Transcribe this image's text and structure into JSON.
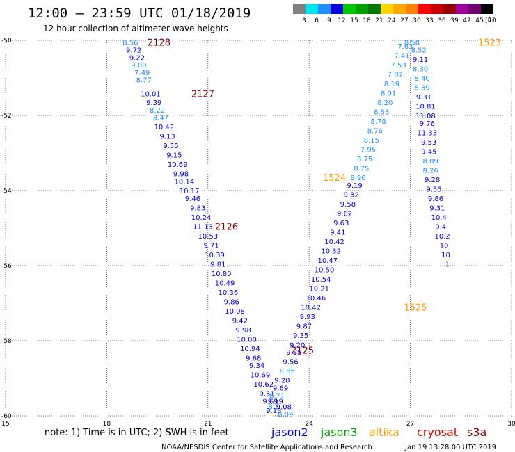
{
  "header": {
    "title": "12:00 – 23:59 UTC 01/18/2019",
    "subtitle": "12 hour collection of altimeter wave heights"
  },
  "color_scale": {
    "unit": "(ft)",
    "bins": [
      {
        "label": "3",
        "color": "#808080"
      },
      {
        "label": "6",
        "color": "#00e5ee"
      },
      {
        "label": "9",
        "color": "#1e90ff"
      },
      {
        "label": "12",
        "color": "#0000e0"
      },
      {
        "label": "15",
        "color": "#00c800"
      },
      {
        "label": "18",
        "color": "#00a000"
      },
      {
        "label": "21",
        "color": "#007800"
      },
      {
        "label": "24",
        "color": "#ffd700"
      },
      {
        "label": "27",
        "color": "#ffaa00"
      },
      {
        "label": "30",
        "color": "#ff7f00"
      },
      {
        "label": "33",
        "color": "#ff0000"
      },
      {
        "label": "36",
        "color": "#c80000"
      },
      {
        "label": "39",
        "color": "#960000"
      },
      {
        "label": "42",
        "color": "#a000a0"
      },
      {
        "label": "45",
        "color": "#700070"
      },
      {
        "label": "70",
        "color": "#000000"
      }
    ]
  },
  "note": "note:  1) Time is in UTC;  2) SWH is in feet",
  "legend": [
    {
      "name": "jason2",
      "color": "#0000cc"
    },
    {
      "name": "jason3",
      "color": "#00a000"
    },
    {
      "name": "altika",
      "color": "#ff9900"
    },
    {
      "name": "cryosat",
      "color": "#cc0000"
    },
    {
      "name": "s3a",
      "color": "#800000"
    }
  ],
  "footer": {
    "agency": "NOAA/NESDIS Center for Satellite Applications and Research",
    "timestamp": "Jan 19 13:28:00 UTC 2019"
  },
  "chart_data": {
    "type": "scatter",
    "xlim": [
      15,
      30
    ],
    "ylim": [
      -60,
      -50
    ],
    "x_ticks": [
      "15",
      "18",
      "21",
      "24",
      "27",
      "30"
    ],
    "y_ticks": [
      "-50",
      "-52",
      "-54",
      "-56",
      "-58",
      "-60"
    ],
    "grid": true,
    "pass_labels": [
      {
        "text": "2128",
        "x": 19.55,
        "y": -50.05,
        "color": "#800000"
      },
      {
        "text": "2127",
        "x": 20.85,
        "y": -51.42,
        "color": "#800000"
      },
      {
        "text": "2126",
        "x": 21.55,
        "y": -54.95,
        "color": "#800000"
      },
      {
        "text": "2125",
        "x": 23.8,
        "y": -58.25,
        "color": "#800000"
      },
      {
        "text": "1524",
        "x": 24.75,
        "y": -53.65,
        "color": "#ff9900"
      },
      {
        "text": "1525",
        "x": 27.15,
        "y": -57.1,
        "color": "#ff9900"
      },
      {
        "text": "1523",
        "x": 29.35,
        "y": -50.05,
        "color": "#ff9900"
      }
    ],
    "series": [
      {
        "name": "s3a",
        "points": [
          {
            "x": 18.7,
            "y": -50.05,
            "v": "8.56"
          },
          {
            "x": 18.8,
            "y": -50.25,
            "v": "9.72"
          },
          {
            "x": 18.9,
            "y": -50.45,
            "v": "9.22"
          },
          {
            "x": 18.95,
            "y": -50.65,
            "v": "9.00"
          },
          {
            "x": 19.05,
            "y": -50.85,
            "v": "7.49"
          },
          {
            "x": 19.1,
            "y": -51.05,
            "v": "8.77"
          },
          {
            "x": 19.3,
            "y": -51.42,
            "v": "10.01"
          },
          {
            "x": 19.4,
            "y": -51.65,
            "v": "9.39"
          },
          {
            "x": 19.5,
            "y": -51.85,
            "v": "8.22"
          },
          {
            "x": 19.6,
            "y": -52.05,
            "v": "8.47"
          },
          {
            "x": 19.7,
            "y": -52.3,
            "v": "10.42"
          },
          {
            "x": 19.8,
            "y": -52.55,
            "v": "9.13"
          },
          {
            "x": 19.9,
            "y": -52.8,
            "v": "9.55"
          },
          {
            "x": 20.0,
            "y": -53.05,
            "v": "9.15"
          },
          {
            "x": 20.1,
            "y": -53.3,
            "v": "10.69"
          },
          {
            "x": 20.2,
            "y": -53.55,
            "v": "9.98"
          },
          {
            "x": 20.3,
            "y": -53.75,
            "v": "10.14"
          },
          {
            "x": 20.45,
            "y": -54.0,
            "v": "10.17"
          },
          {
            "x": 20.55,
            "y": -54.2,
            "v": "9.46"
          },
          {
            "x": 20.7,
            "y": -54.45,
            "v": "9.83"
          },
          {
            "x": 20.8,
            "y": -54.7,
            "v": "10.24"
          },
          {
            "x": 20.85,
            "y": -54.95,
            "v": "11.13"
          },
          {
            "x": 21.0,
            "y": -55.2,
            "v": "10.53"
          },
          {
            "x": 21.1,
            "y": -55.45,
            "v": "9.71"
          },
          {
            "x": 21.2,
            "y": -55.7,
            "v": "10.39"
          },
          {
            "x": 21.3,
            "y": -55.95,
            "v": "9.81"
          },
          {
            "x": 21.4,
            "y": -56.2,
            "v": "10.80"
          },
          {
            "x": 21.5,
            "y": -56.45,
            "v": "10.49"
          },
          {
            "x": 21.6,
            "y": -56.7,
            "v": "10.36"
          },
          {
            "x": 21.7,
            "y": -56.95,
            "v": "9.86"
          },
          {
            "x": 21.8,
            "y": -57.2,
            "v": "10.08"
          },
          {
            "x": 21.95,
            "y": -57.45,
            "v": "9.42"
          },
          {
            "x": 22.05,
            "y": -57.7,
            "v": "9.98"
          },
          {
            "x": 22.15,
            "y": -57.95,
            "v": "10.00"
          },
          {
            "x": 22.25,
            "y": -58.2,
            "v": "10.94"
          },
          {
            "x": 22.35,
            "y": -58.45,
            "v": "9.68"
          },
          {
            "x": 22.45,
            "y": -58.65,
            "v": "9.34"
          },
          {
            "x": 22.55,
            "y": -58.9,
            "v": "10.69"
          },
          {
            "x": 22.65,
            "y": -59.15,
            "v": "10.62"
          },
          {
            "x": 22.75,
            "y": -59.4,
            "v": "9.31"
          },
          {
            "x": 22.85,
            "y": -59.6,
            "v": "9.69"
          },
          {
            "x": 22.95,
            "y": -59.75,
            "v": "8.7"
          },
          {
            "x": 22.95,
            "y": -59.85,
            "v": "9.13"
          }
        ]
      },
      {
        "name": "s3a",
        "points": [
          {
            "x": 23.25,
            "y": -59.75,
            "v": "9.08"
          },
          {
            "x": 23.3,
            "y": -59.95,
            "v": "8.09"
          },
          {
            "x": 23.0,
            "y": -59.6,
            "v": "9.19"
          },
          {
            "x": 23.05,
            "y": -59.45,
            "v": "8.71"
          },
          {
            "x": 23.15,
            "y": -59.25,
            "v": "9.69"
          },
          {
            "x": 23.2,
            "y": -59.05,
            "v": "9.20"
          },
          {
            "x": 23.35,
            "y": -58.8,
            "v": "8.85"
          },
          {
            "x": 23.45,
            "y": -58.55,
            "v": "9.56"
          },
          {
            "x": 23.55,
            "y": -58.3,
            "v": "9.85"
          },
          {
            "x": 23.65,
            "y": -58.1,
            "v": "9.20"
          },
          {
            "x": 23.75,
            "y": -57.85,
            "v": "9.35"
          },
          {
            "x": 23.85,
            "y": -57.6,
            "v": "9.87"
          },
          {
            "x": 23.95,
            "y": -57.35,
            "v": "9.93"
          },
          {
            "x": 24.05,
            "y": -57.1,
            "v": "10.42"
          },
          {
            "x": 24.2,
            "y": -56.85,
            "v": "10.46"
          },
          {
            "x": 24.3,
            "y": -56.6,
            "v": "10.21"
          },
          {
            "x": 24.35,
            "y": -56.35,
            "v": "10.54"
          },
          {
            "x": 24.45,
            "y": -56.1,
            "v": "10.50"
          },
          {
            "x": 24.55,
            "y": -55.85,
            "v": "10.47"
          },
          {
            "x": 24.65,
            "y": -55.6,
            "v": "10.32"
          },
          {
            "x": 24.75,
            "y": -55.35,
            "v": "10.42"
          },
          {
            "x": 24.85,
            "y": -55.1,
            "v": "9.41"
          },
          {
            "x": 24.95,
            "y": -54.85,
            "v": "9.63"
          },
          {
            "x": 25.05,
            "y": -54.6,
            "v": "9.62"
          },
          {
            "x": 25.15,
            "y": -54.35,
            "v": "9.58"
          },
          {
            "x": 25.25,
            "y": -54.1,
            "v": "9.32"
          },
          {
            "x": 25.35,
            "y": -53.85,
            "v": "9.19"
          },
          {
            "x": 25.45,
            "y": -53.65,
            "v": "8.96"
          },
          {
            "x": 25.55,
            "y": -53.4,
            "v": "8.75"
          },
          {
            "x": 25.65,
            "y": -53.15,
            "v": "8.75"
          },
          {
            "x": 25.75,
            "y": -52.9,
            "v": "7.95"
          },
          {
            "x": 25.85,
            "y": -52.65,
            "v": "8.15"
          },
          {
            "x": 25.95,
            "y": -52.4,
            "v": "8.76"
          },
          {
            "x": 26.05,
            "y": -52.15,
            "v": "8.78"
          },
          {
            "x": 26.15,
            "y": -51.9,
            "v": "8.53"
          },
          {
            "x": 26.25,
            "y": -51.65,
            "v": "8.20"
          },
          {
            "x": 26.35,
            "y": -51.4,
            "v": "8.01"
          },
          {
            "x": 26.45,
            "y": -51.15,
            "v": "8.19"
          },
          {
            "x": 26.55,
            "y": -50.9,
            "v": "7.82"
          },
          {
            "x": 26.65,
            "y": -50.65,
            "v": "7.53"
          },
          {
            "x": 26.75,
            "y": -50.4,
            "v": "7.41"
          },
          {
            "x": 26.85,
            "y": -50.15,
            "v": "7.63"
          },
          {
            "x": 27.05,
            "y": -50.05,
            "v": "8.58"
          }
        ]
      },
      {
        "name": "altika",
        "points": [
          {
            "x": 27.25,
            "y": -50.25,
            "v": "8.52"
          },
          {
            "x": 27.3,
            "y": -50.5,
            "v": "9.11"
          },
          {
            "x": 27.3,
            "y": -50.75,
            "v": "8.30"
          },
          {
            "x": 27.35,
            "y": -51.0,
            "v": "8.40"
          },
          {
            "x": 27.35,
            "y": -51.25,
            "v": "8.39"
          },
          {
            "x": 27.4,
            "y": -51.5,
            "v": "9.31"
          },
          {
            "x": 27.45,
            "y": -51.75,
            "v": "10.81"
          },
          {
            "x": 27.45,
            "y": -52.0,
            "v": "11.08"
          },
          {
            "x": 27.5,
            "y": -52.2,
            "v": "9.76"
          },
          {
            "x": 27.5,
            "y": -52.45,
            "v": "11.33"
          },
          {
            "x": 27.55,
            "y": -52.7,
            "v": "9.53"
          },
          {
            "x": 27.55,
            "y": -52.95,
            "v": "9.45"
          },
          {
            "x": 27.6,
            "y": -53.2,
            "v": "8.89"
          },
          {
            "x": 27.6,
            "y": -53.45,
            "v": "8.26"
          },
          {
            "x": 27.65,
            "y": -53.7,
            "v": "9.28"
          },
          {
            "x": 27.7,
            "y": -53.95,
            "v": "9.55"
          },
          {
            "x": 27.75,
            "y": -54.2,
            "v": "9.86"
          },
          {
            "x": 27.8,
            "y": -54.45,
            "v": "9.31"
          },
          {
            "x": 27.85,
            "y": -54.7,
            "v": "10.4"
          },
          {
            "x": 27.9,
            "y": -54.95,
            "v": "9.4"
          },
          {
            "x": 27.95,
            "y": -55.2,
            "v": "10.2"
          },
          {
            "x": 28.0,
            "y": -55.45,
            "v": "10"
          },
          {
            "x": 28.05,
            "y": -55.7,
            "v": "10"
          },
          {
            "x": 28.1,
            "y": -55.95,
            "v": "1"
          }
        ]
      }
    ]
  }
}
